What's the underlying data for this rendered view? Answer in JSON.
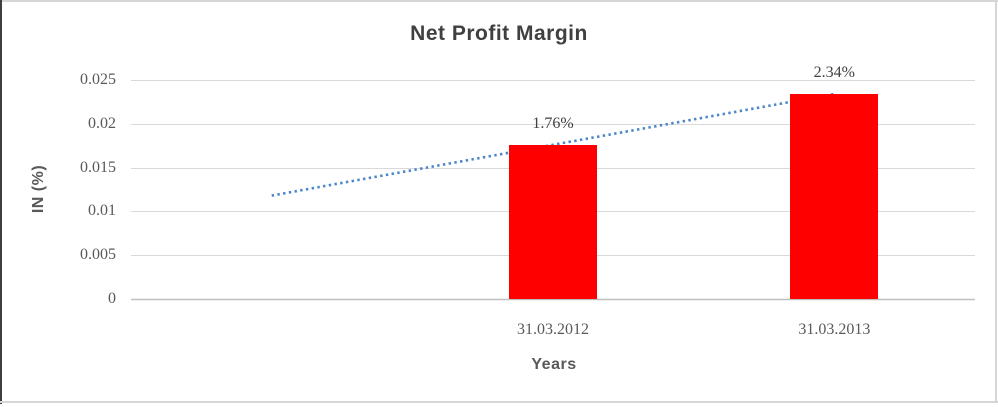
{
  "chart_data": {
    "type": "bar",
    "title": "Net Profit Margin",
    "categories": [
      "",
      "31.03.2012",
      "31.03.2013"
    ],
    "values": [
      null,
      0.0176,
      0.0234
    ],
    "data_labels": [
      null,
      "1.76%",
      "2.34%"
    ],
    "xlabel": "Years",
    "ylabel": "IN (%)",
    "ylim": [
      0,
      0.025
    ],
    "ytick_step": 0.005,
    "ytick_labels": [
      "0",
      "0.005",
      "0.01",
      "0.015",
      "0.02",
      "0.025"
    ],
    "grid": true,
    "legend": "none",
    "bar_color": "#FF0000",
    "trendline": {
      "type": "linear",
      "style": "dotted",
      "color": "#4A86C8",
      "values": [
        0.0118,
        0.0176,
        0.0234
      ]
    },
    "colors": {
      "title": "#404040",
      "axis_title": "#595959",
      "tick_label": "#595959",
      "data_label": "#404040",
      "gridline": "#D9D9D9",
      "axis_line": "#BFBFBF"
    }
  },
  "frame": {
    "top_color": "#D6D6D6",
    "left_color": "#3F3F3F",
    "right_color": "#D6D6D6",
    "bottom_color": "#D6D6D6"
  }
}
